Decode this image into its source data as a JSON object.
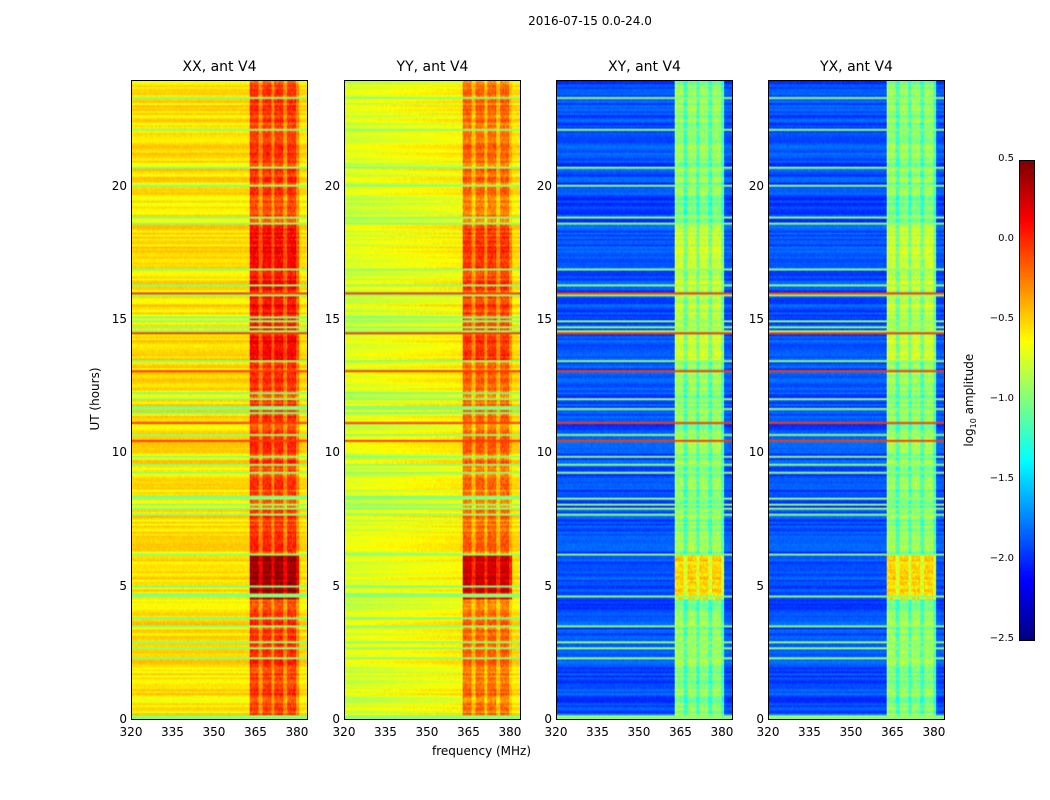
{
  "chart_data": {
    "type": "heatmap",
    "title": "2016-07-15 0.0-24.0",
    "xlabel": "frequency (MHz)",
    "ylabel": "UT (hours)",
    "xlim": [
      320,
      384
    ],
    "ylim": [
      0,
      24
    ],
    "xticks": [
      "320",
      "335",
      "350",
      "365",
      "380"
    ],
    "yticks": [
      "0",
      "5",
      "10",
      "15",
      "20"
    ],
    "colorbar": {
      "label": "log10 amplitude",
      "label_main": "log",
      "label_sub": "10",
      "label_rest": " amplitude",
      "clim": [
        -2.5,
        0.5
      ],
      "ticks": [
        "0.5",
        "0.0",
        "−0.5",
        "−1.0",
        "−1.5",
        "−2.0",
        "−2.5"
      ],
      "colormap": "jet"
    },
    "panels": [
      {
        "title": "XX, ant V4",
        "base_level": -0.55,
        "band_level": -0.2,
        "band_mhz": [
          363,
          381
        ]
      },
      {
        "title": "YY, ant V4",
        "base_level": -0.75,
        "band_level": -0.35,
        "band_mhz": [
          363,
          381
        ]
      },
      {
        "title": "XY, ant V4",
        "base_level": -1.9,
        "band_level": -1.1,
        "band_mhz": [
          363,
          381
        ]
      },
      {
        "title": "YX, ant V4",
        "base_level": -1.9,
        "band_level": -1.1,
        "band_mhz": [
          363,
          381
        ]
      }
    ]
  }
}
